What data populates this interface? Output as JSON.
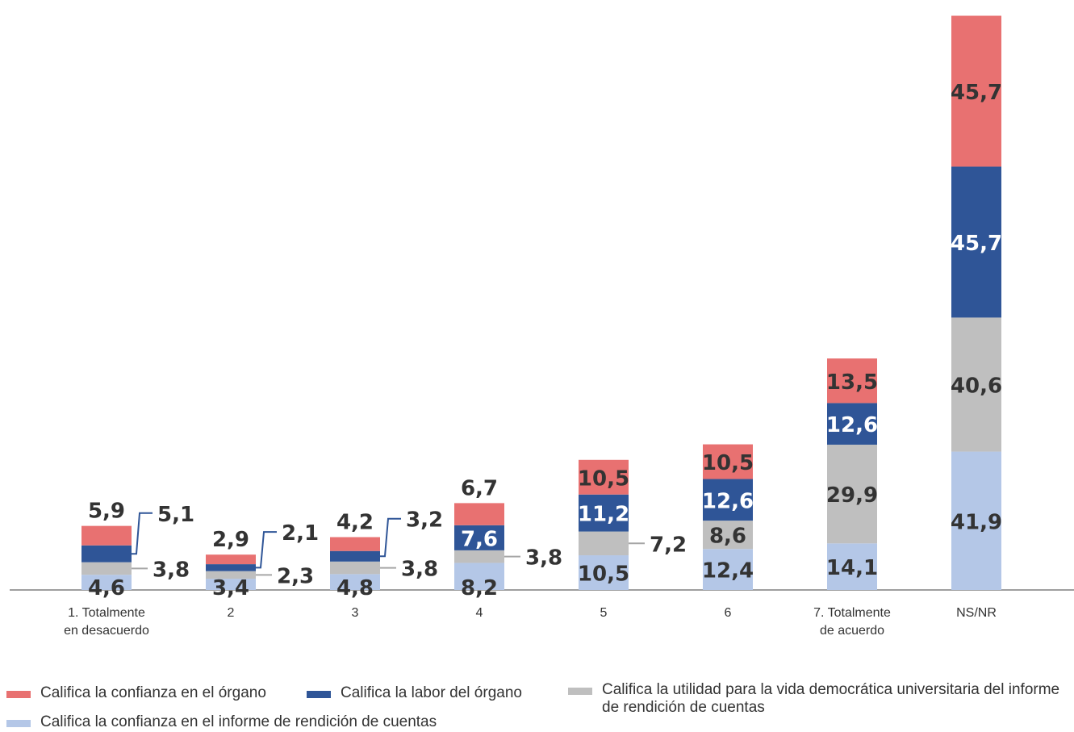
{
  "chart_data": {
    "type": "bar",
    "stacked": true,
    "categories": [
      "1. Totalmente en desacuerdo",
      "2",
      "3",
      "4",
      "5",
      "6",
      "7. Totalmente de acuerdo",
      "NS/NR"
    ],
    "category_lines": [
      [
        "1. Totalmente",
        "en desacuerdo"
      ],
      [
        "2"
      ],
      [
        "3"
      ],
      [
        "4"
      ],
      [
        "5"
      ],
      [
        "6"
      ],
      [
        "7. Totalmente",
        "de acuerdo"
      ],
      [
        "NS/NR"
      ]
    ],
    "series": [
      {
        "name": "Califica la confianza en el informe de rendición de cuentas",
        "color": "#b4c7e7",
        "label_color": "#333333",
        "values": [
          4.6,
          3.4,
          4.8,
          8.2,
          10.5,
          12.4,
          14.1,
          41.9
        ],
        "labels": [
          "4,6",
          "3,4",
          "4,8",
          "8,2",
          "10,5",
          "12,4",
          "14,1",
          "41,9"
        ]
      },
      {
        "name": "Califica la utilidad para la vida democrática  universitaria del informe de rendición de cuentas",
        "color": "#bfbfbf",
        "label_color": "#333333",
        "values": [
          3.8,
          2.3,
          3.8,
          3.8,
          7.2,
          8.6,
          29.9,
          40.6
        ],
        "labels": [
          "3,8",
          "2,3",
          "3,8",
          "3,8",
          "7,2",
          "8,6",
          "29,9",
          "40,6"
        ]
      },
      {
        "name": "Califica la labor del órgano",
        "color": "#2f5597",
        "label_color": "#ffffff",
        "values": [
          5.1,
          2.1,
          3.2,
          7.6,
          11.2,
          12.6,
          12.6,
          45.7
        ],
        "labels": [
          "5,1",
          "2,1",
          "3,2",
          "7,6",
          "11,2",
          "12,6",
          "12,6",
          "45,7"
        ]
      },
      {
        "name": "Califica la confianza en el órgano",
        "color": "#e87171",
        "label_color": "#333333",
        "values": [
          5.9,
          2.9,
          4.2,
          6.7,
          10.5,
          10.5,
          13.5,
          45.7
        ],
        "labels": [
          "5,9",
          "2,9",
          "4,2",
          "6,7",
          "10,5",
          "10,5",
          "13,5",
          "45,7"
        ]
      }
    ],
    "legend_order": [
      3,
      2,
      1,
      0
    ],
    "legend_placement": "bottom",
    "ylim": [
      0,
      175
    ],
    "grid": false,
    "title": "",
    "xlabel": "",
    "ylabel": ""
  }
}
